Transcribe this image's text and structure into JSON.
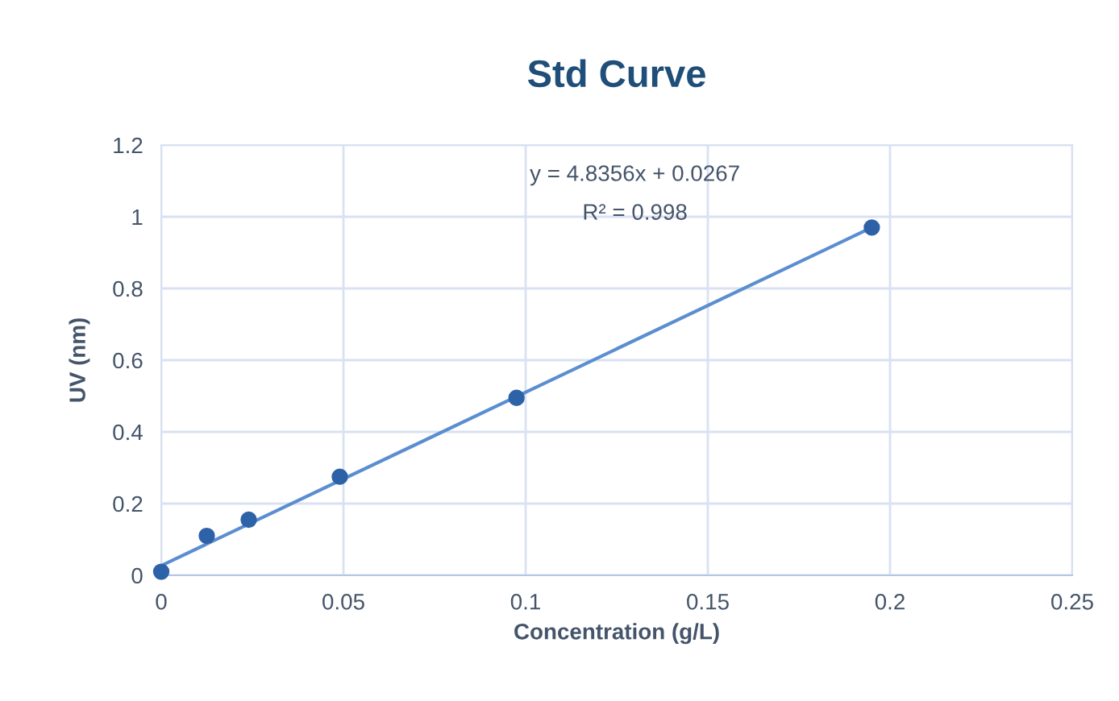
{
  "chart_data": {
    "type": "scatter",
    "title": "Std Curve",
    "xlabel": "Concentration (g/L)",
    "ylabel": "UV (nm)",
    "annotations": [
      "y = 4.8356x + 0.0267",
      "R² = 0.998"
    ],
    "xlim": [
      0,
      0.25
    ],
    "xticks": [
      0,
      0.05,
      0.1,
      0.15,
      0.2,
      0.25
    ],
    "ylim": [
      0,
      1.2
    ],
    "yticks": [
      0,
      0.2,
      0.4,
      0.6,
      0.8,
      1,
      1.2
    ],
    "grid": true,
    "legend": false,
    "series": [
      {
        "color": "#2e62a8",
        "marker": "circle",
        "x": [
          0,
          0.0125,
          0.024,
          0.049,
          0.0975,
          0.195
        ],
        "values": [
          0.01,
          0.11,
          0.155,
          0.275,
          0.495,
          0.97
        ]
      },
      {
        "type": "line",
        "color": "#5b8ed0",
        "marker": "none",
        "line_style": "solid",
        "x": [
          0,
          0.195
        ],
        "values": [
          0.027,
          0.97
        ]
      }
    ]
  }
}
